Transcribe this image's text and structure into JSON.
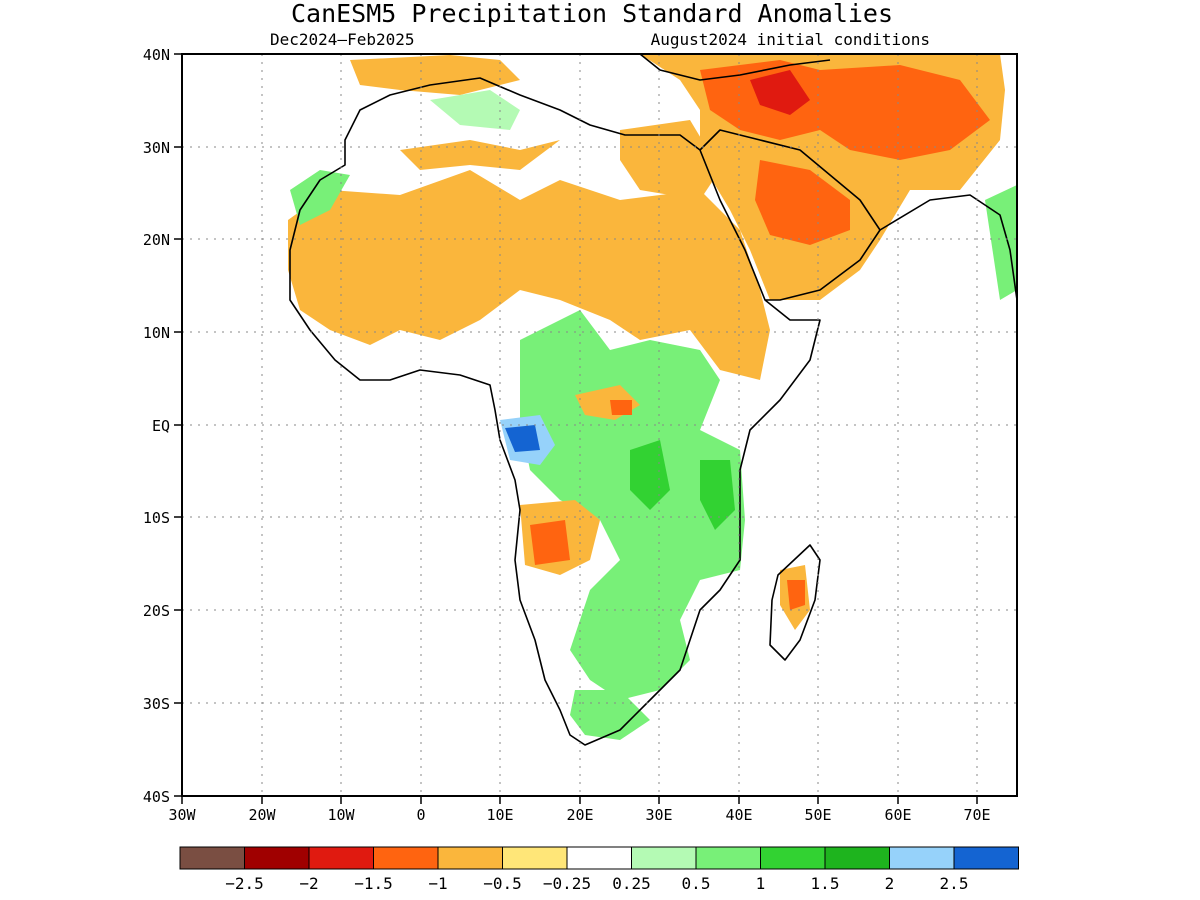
{
  "title": "CanESM5 Precipitation Standard Anomalies",
  "subtitle_left": "Dec2024–Feb2025",
  "subtitle_right": "August2024 initial conditions",
  "axes": {
    "lat_ticks": [
      "40N",
      "30N",
      "20N",
      "10N",
      "EQ",
      "10S",
      "20S",
      "30S",
      "40S"
    ],
    "lon_ticks": [
      "30W",
      "20W",
      "10W",
      "0",
      "10E",
      "20E",
      "30E",
      "40E",
      "50E",
      "60E",
      "70E"
    ],
    "lat_range": [
      -40,
      40
    ],
    "lon_range": [
      -30,
      75
    ],
    "grid": "dotted"
  },
  "colorbar": {
    "colors": [
      "#7a4e42",
      "#a00000",
      "#e01a10",
      "#ff6410",
      "#fab63c",
      "#ffe678",
      "#ffffff",
      "#b4fab4",
      "#78f078",
      "#32d232",
      "#1eb41e",
      "#96d2fa",
      "#1464d2"
    ],
    "labels": [
      "−2.5",
      "−2",
      "−1.5",
      "−1",
      "−0.5",
      "−0.25",
      "0.25",
      "0.5",
      "1",
      "1.5",
      "2",
      "2.5"
    ]
  }
}
